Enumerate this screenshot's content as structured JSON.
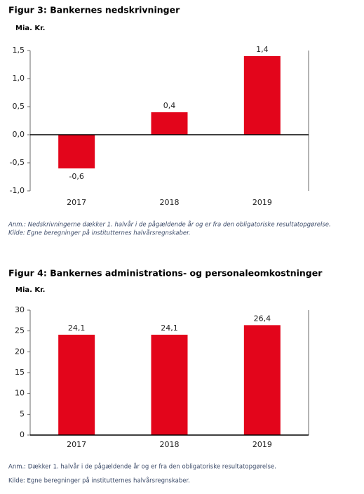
{
  "chart_data": [
    {
      "type": "bar",
      "title": "Figur 3: Bankernes nedskrivninger",
      "y_label": "Mia. Kr.",
      "categories": [
        "2017",
        "2018",
        "2019"
      ],
      "values": [
        -0.6,
        0.4,
        1.4
      ],
      "value_labels": [
        "-0,6",
        "0,4",
        "1,4"
      ],
      "color": "#e3051b",
      "ylim": [
        -1.0,
        1.5
      ],
      "yticks": [
        {
          "value": -1.0,
          "label": "-1,0"
        },
        {
          "value": -0.5,
          "label": "-0,5"
        },
        {
          "value": 0,
          "label": "0,0"
        },
        {
          "value": 0.5,
          "label": "0,5"
        },
        {
          "value": 1.0,
          "label": "1,0"
        },
        {
          "value": 1.5,
          "label": "1,5"
        }
      ],
      "notes": [
        "Anm.: Nedskrivningerne dækker 1. halvår i de pågældende år og er fra den obligatoriske resultatopgørelse.",
        "Kilde: Egne beregninger på institutternes halvårsregnskaber."
      ]
    },
    {
      "type": "bar",
      "title": "Figur 4: Bankernes administrations- og personaleomkostninger",
      "y_label": "Mia. Kr.",
      "categories": [
        "2017",
        "2018",
        "2019"
      ],
      "values": [
        24.1,
        24.1,
        26.4
      ],
      "value_labels": [
        "24,1",
        "24,1",
        "26,4"
      ],
      "color": "#e3051b",
      "ylim": [
        0,
        30
      ],
      "yticks": [
        0,
        5,
        10,
        15,
        20,
        25,
        30
      ],
      "notes": [
        "Anm.: Dækker 1. halvår i de pågældende år og er fra den obligatoriske resultatopgørelse.",
        "Kilde: Egne beregninger på institutternes halvårsregnskaber."
      ]
    }
  ]
}
